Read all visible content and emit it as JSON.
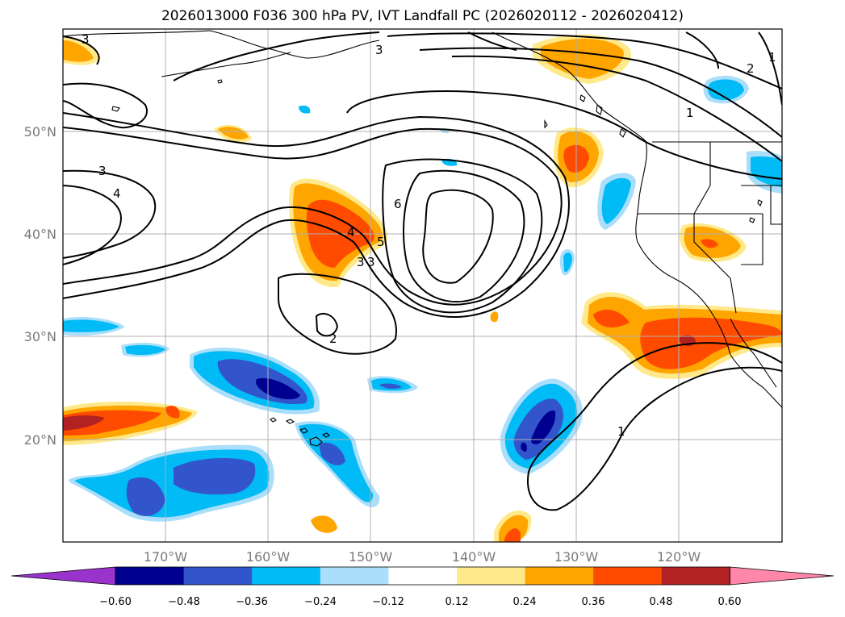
{
  "title": "2026013000 F036 300 hPa PV, IVT Landfall PC (2026020112 - 2026020412)",
  "map": {
    "extent": {
      "lon_min": -180,
      "lon_max": -110,
      "lat_min": 10,
      "lat_max": 60
    },
    "lat_labels": [
      "50°N",
      "40°N",
      "30°N",
      "20°N"
    ],
    "lon_labels": [
      "170°W",
      "160°W",
      "150°W",
      "140°W",
      "130°W",
      "120°W"
    ],
    "contour_labels": [
      "3",
      "3",
      "4",
      "6",
      "4",
      "5",
      "3",
      "3",
      "2",
      "2",
      "1",
      "1",
      "3",
      "1"
    ]
  },
  "colorbar": {
    "ticks": [
      "−0.60",
      "−0.48",
      "−0.36",
      "−0.24",
      "−0.12",
      "0.12",
      "0.24",
      "0.36",
      "0.48",
      "0.60"
    ],
    "colors": [
      "#9933cc",
      "#000090",
      "#3355cc",
      "#00bbf5",
      "#aadefa",
      "#ffffff",
      "#ffe98a",
      "#ffa500",
      "#ff4b00",
      "#b22222",
      "#ff88aa"
    ]
  }
}
